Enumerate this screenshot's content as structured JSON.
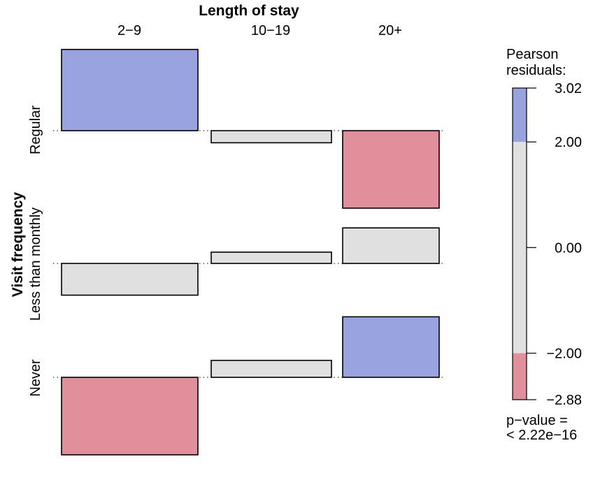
{
  "chart_data": {
    "type": "association_plot",
    "col_variable": "Length of stay",
    "row_variable": "Visit frequency",
    "columns": [
      "2−9",
      "10−19",
      "20+"
    ],
    "rows": [
      "Regular",
      "Less than monthly",
      "Never"
    ],
    "residuals": [
      [
        3.02,
        -0.45,
        -2.88
      ],
      [
        -1.18,
        0.42,
        1.32
      ],
      [
        -2.88,
        0.63,
        2.25
      ]
    ],
    "relative_widths": [
      1.0,
      0.88,
      0.7
    ],
    "legend": {
      "title_lines": [
        "Pearson",
        "residuals:"
      ],
      "ticks": [
        "3.02",
        "2.00",
        "0.00",
        "−2.00",
        "−2.88"
      ],
      "tick_values": [
        3.02,
        2.0,
        0.0,
        -2.0,
        -2.88
      ],
      "range": [
        -2.88,
        3.02
      ],
      "pvalue_lines": [
        "p−value =",
        "< 2.22e−16"
      ]
    },
    "colors": {
      "positive": "#98a3e0",
      "neutral": "#e0e0e0",
      "negative": "#e28f9c"
    },
    "thresholds": [
      -2.0,
      2.0
    ]
  }
}
